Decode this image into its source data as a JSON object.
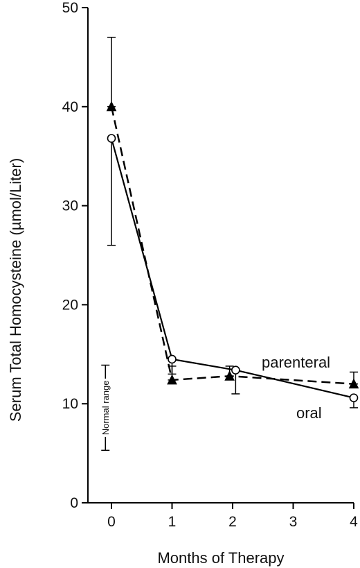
{
  "chart_data": {
    "type": "line",
    "title": "",
    "xlabel": "Months of Therapy",
    "ylabel": "Serum Total Homocysteine (µmol/Liter)",
    "xlim": [
      -0.35,
      4.1
    ],
    "ylim": [
      0,
      50
    ],
    "x_ticks": [
      0,
      1,
      2,
      3,
      4
    ],
    "y_ticks": [
      0,
      10,
      20,
      30,
      40,
      50
    ],
    "grid": false,
    "series": [
      {
        "name": "oral",
        "marker": "open-circle",
        "line": "solid",
        "color": "#000000",
        "points": [
          {
            "x": 0,
            "y": 36.8,
            "err_low": 26.0,
            "err_high": 36.8
          },
          {
            "x": 1,
            "y": 14.5,
            "err_low": 13.0,
            "err_high": 14.5
          },
          {
            "x": 2.05,
            "y": 13.4,
            "err_low": 11.0,
            "err_high": 13.4
          },
          {
            "x": 4,
            "y": 10.6,
            "err_low": 9.6,
            "err_high": 10.6
          }
        ]
      },
      {
        "name": "parenteral",
        "marker": "filled-triangle",
        "line": "dashed",
        "color": "#000000",
        "points": [
          {
            "x": 0,
            "y": 40.0,
            "err_low": 40.0,
            "err_high": 47.0
          },
          {
            "x": 1,
            "y": 12.4,
            "err_low": 12.4,
            "err_high": 13.8
          },
          {
            "x": 1.95,
            "y": 12.8,
            "err_low": 12.8,
            "err_high": 13.8
          },
          {
            "x": 4,
            "y": 12.0,
            "err_low": 12.0,
            "err_high": 13.2
          }
        ]
      }
    ],
    "annotations": {
      "normal_range": {
        "label": "Normal range",
        "x": -0.1,
        "low": 5.3,
        "high": 13.9
      }
    }
  }
}
